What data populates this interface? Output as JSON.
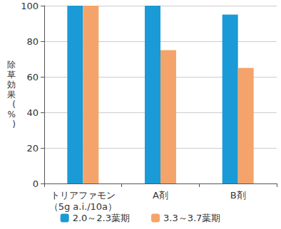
{
  "chart_data": {
    "type": "bar",
    "y_label": "除草効果(%)",
    "categories": [
      "トリアファモン\n（5g a.i./10a）",
      "A剤",
      "B剤"
    ],
    "series": [
      {
        "name": "2.0～2.3葉期",
        "color": "#1a9ad6",
        "values": [
          100,
          100,
          95
        ]
      },
      {
        "name": "3.3～3.7葉期",
        "color": "#f4a46a",
        "values": [
          100,
          75,
          65
        ]
      }
    ],
    "ylim": [
      0,
      100
    ],
    "yticks": [
      0,
      20,
      40,
      60,
      80,
      100
    ],
    "grid": true,
    "legend": "bottom"
  }
}
